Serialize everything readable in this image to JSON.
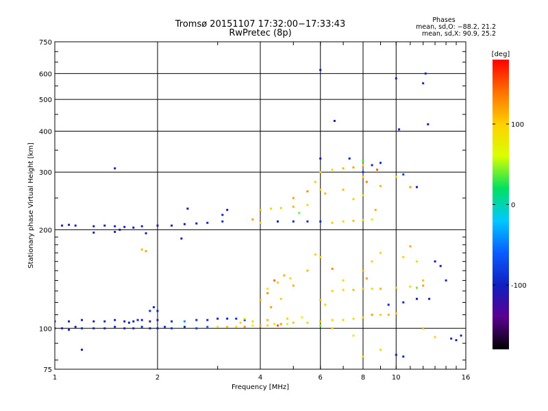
{
  "chart_data": {
    "type": "scatter",
    "title": "Tromsø 20151107 17:32:00−17:33:43",
    "subtitle": "RwPretec (8p)",
    "xlabel": "Frequency [MHz]",
    "ylabel": "Stationary phase Virtual Height [km]",
    "xscale": "log",
    "yscale": "log",
    "xlim": [
      1,
      16
    ],
    "ylim": [
      75,
      750
    ],
    "x_ticks": [
      1,
      2,
      4,
      6,
      8,
      10,
      16
    ],
    "y_ticks": [
      75,
      100,
      200,
      300,
      400,
      500,
      600,
      750
    ],
    "grid": true,
    "phase_stats": {
      "heading": "Phases",
      "line_o": "mean, sd,O: −88.2, 21.2",
      "line_x": "mean, sd,X:  90.9, 25.2"
    },
    "colorbar": {
      "label": "[deg]",
      "ticks": [
        100,
        0,
        -100
      ],
      "range": [
        -180,
        180
      ],
      "colors": [
        "#000000",
        "#5a0090",
        "#1020c0",
        "#0a5cff",
        "#00c8ff",
        "#00e060",
        "#d8ff00",
        "#ffd000",
        "#ff7000",
        "#ff0000"
      ]
    },
    "series": [
      {
        "mode": "O",
        "phase_mean": -88.2,
        "points": [
          [
            1.0,
            100,
            -110
          ],
          [
            1.05,
            100,
            -105
          ],
          [
            1.1,
            99,
            -100
          ],
          [
            1.15,
            101,
            -108
          ],
          [
            1.2,
            100,
            -95
          ],
          [
            1.3,
            100,
            -110
          ],
          [
            1.4,
            100,
            -102
          ],
          [
            1.5,
            101,
            -98
          ],
          [
            1.6,
            100,
            -106
          ],
          [
            1.7,
            100,
            -100
          ],
          [
            1.8,
            101,
            -92
          ],
          [
            1.9,
            100,
            -104
          ],
          [
            2.0,
            100,
            -99
          ],
          [
            2.1,
            101,
            -95
          ],
          [
            2.2,
            100,
            -90
          ],
          [
            2.4,
            101,
            -100
          ],
          [
            2.6,
            100,
            -80
          ],
          [
            2.8,
            101,
            -60
          ],
          [
            3.0,
            101,
            90
          ],
          [
            1.0,
            105,
            -110
          ],
          [
            1.1,
            105,
            -108
          ],
          [
            1.2,
            106,
            -100
          ],
          [
            1.3,
            105,
            -112
          ],
          [
            1.4,
            105,
            -103
          ],
          [
            1.5,
            106,
            -99
          ],
          [
            1.6,
            105,
            -107
          ],
          [
            1.7,
            105,
            -101
          ],
          [
            1.8,
            106,
            -96
          ],
          [
            1.9,
            105,
            -109
          ],
          [
            2.0,
            106,
            -102
          ],
          [
            2.2,
            105,
            -94
          ],
          [
            2.4,
            105,
            -40
          ],
          [
            2.6,
            106,
            -90
          ],
          [
            2.8,
            106,
            -95
          ],
          [
            3.0,
            107,
            -100
          ],
          [
            3.2,
            107,
            -98
          ],
          [
            3.4,
            107,
            -92
          ],
          [
            3.6,
            106,
            -88
          ],
          [
            1.05,
            206,
            -110
          ],
          [
            1.1,
            207,
            -106
          ],
          [
            1.15,
            206,
            -102
          ],
          [
            1.3,
            205,
            -105
          ],
          [
            1.4,
            206,
            -100
          ],
          [
            1.5,
            205,
            -108
          ],
          [
            1.6,
            204,
            -103
          ],
          [
            1.7,
            203,
            -100
          ],
          [
            1.8,
            205,
            -95
          ],
          [
            2.0,
            206,
            -110
          ],
          [
            2.2,
            206,
            -100
          ],
          [
            2.4,
            208,
            -106
          ],
          [
            2.6,
            209,
            -102
          ],
          [
            2.8,
            210,
            -98
          ],
          [
            3.1,
            212,
            -94
          ],
          [
            3.2,
            230,
            -100
          ],
          [
            3.1,
            222,
            -95
          ],
          [
            2.45,
            232,
            -110
          ],
          [
            2.35,
            188,
            -106
          ],
          [
            1.5,
            308,
            -100
          ],
          [
            1.3,
            196,
            -104
          ],
          [
            1.5,
            197,
            -98
          ],
          [
            1.55,
            200,
            -100
          ],
          [
            1.8,
            174,
            110
          ],
          [
            1.85,
            172,
            120
          ],
          [
            1.9,
            113,
            -95
          ],
          [
            2.0,
            113,
            -100
          ],
          [
            1.95,
            116,
            -92
          ],
          [
            1.75,
            106,
            -98
          ],
          [
            1.65,
            104,
            -100
          ],
          [
            1.2,
            86,
            -105
          ],
          [
            1.85,
            195,
            -97
          ],
          [
            4.5,
            212,
            -100
          ],
          [
            5.0,
            212,
            -95
          ],
          [
            5.5,
            212,
            -90
          ],
          [
            6.0,
            212,
            -92
          ],
          [
            6.0,
            330,
            -104
          ],
          [
            7.3,
            330,
            -100
          ],
          [
            8.0,
            300,
            -85
          ],
          [
            8.5,
            315,
            -100
          ],
          [
            9.0,
            320,
            -95
          ],
          [
            10.5,
            295,
            -85
          ],
          [
            11.5,
            270,
            -100
          ],
          [
            12.0,
            560,
            -95
          ],
          [
            12.2,
            600,
            -95
          ],
          [
            12.4,
            420,
            -100
          ],
          [
            6.6,
            430,
            -110
          ],
          [
            6.0,
            615,
            -100
          ],
          [
            10.0,
            580,
            -110
          ],
          [
            10.2,
            405,
            -100
          ],
          [
            9.5,
            118,
            -100
          ],
          [
            10.5,
            120,
            -95
          ],
          [
            11.5,
            123,
            -100
          ],
          [
            12.5,
            123,
            -105
          ],
          [
            13.0,
            160,
            -108
          ],
          [
            13.5,
            155,
            -100
          ],
          [
            14.0,
            140,
            -95
          ],
          [
            15.0,
            92,
            -100
          ],
          [
            15.5,
            95,
            -95
          ],
          [
            14.5,
            93,
            -90
          ],
          [
            10.0,
            83,
            -100
          ],
          [
            10.5,
            82,
            -95
          ]
        ]
      },
      {
        "mode": "X",
        "phase_mean": 90.9,
        "points": [
          [
            3.2,
            101,
            110
          ],
          [
            3.4,
            101,
            95
          ],
          [
            3.6,
            101,
            130
          ],
          [
            3.8,
            102,
            80
          ],
          [
            4.0,
            102,
            115
          ],
          [
            4.2,
            102,
            100
          ],
          [
            4.4,
            103,
            90
          ],
          [
            4.6,
            103,
            120
          ],
          [
            4.8,
            103,
            70
          ],
          [
            5.0,
            104,
            105
          ],
          [
            5.5,
            104,
            95
          ],
          [
            6.0,
            105,
            110
          ],
          [
            6.5,
            106,
            100
          ],
          [
            7.0,
            106,
            90
          ],
          [
            7.5,
            107,
            85
          ],
          [
            8.0,
            108,
            100
          ],
          [
            8.5,
            110,
            120
          ],
          [
            9.0,
            110,
            95
          ],
          [
            9.5,
            110,
            110
          ],
          [
            10.0,
            111,
            100
          ],
          [
            3.5,
            104,
            100
          ],
          [
            3.8,
            105,
            90
          ],
          [
            4.2,
            106,
            110
          ],
          [
            4.8,
            107,
            95
          ],
          [
            5.3,
            108,
            60
          ],
          [
            4.0,
            122,
            110
          ],
          [
            4.2,
            128,
            130
          ],
          [
            4.5,
            138,
            100
          ],
          [
            4.7,
            145,
            115
          ],
          [
            4.9,
            142,
            90
          ],
          [
            4.2,
            132,
            80
          ],
          [
            4.4,
            140,
            140
          ],
          [
            4.6,
            123,
            100
          ],
          [
            4.3,
            116,
            120
          ],
          [
            4.0,
            230,
            110
          ],
          [
            4.3,
            232,
            100
          ],
          [
            4.6,
            233,
            95
          ],
          [
            5.0,
            235,
            115
          ],
          [
            5.5,
            238,
            90
          ],
          [
            5.0,
            250,
            120
          ],
          [
            5.5,
            262,
            130
          ],
          [
            6.0,
            265,
            100
          ],
          [
            6.2,
            258,
            110
          ],
          [
            5.8,
            280,
            95
          ],
          [
            6.0,
            300,
            100
          ],
          [
            6.5,
            305,
            90
          ],
          [
            7.0,
            308,
            110
          ],
          [
            7.5,
            310,
            120
          ],
          [
            8.0,
            315,
            100
          ],
          [
            6.5,
            210,
            100
          ],
          [
            7.0,
            212,
            90
          ],
          [
            7.5,
            213,
            110
          ],
          [
            8.0,
            214,
            95
          ],
          [
            8.5,
            215,
            80
          ],
          [
            7.0,
            265,
            110
          ],
          [
            7.5,
            248,
            100
          ],
          [
            8.2,
            280,
            130
          ],
          [
            8.0,
            255,
            95
          ],
          [
            8.7,
            230,
            115
          ],
          [
            8.0,
            290,
            100
          ],
          [
            9.0,
            272,
            110
          ],
          [
            10.0,
            290,
            95
          ],
          [
            11.0,
            270,
            120
          ],
          [
            6.5,
            130,
            100
          ],
          [
            7.0,
            131,
            90
          ],
          [
            7.5,
            131,
            110
          ],
          [
            8.0,
            132,
            105
          ],
          [
            8.5,
            132,
            95
          ],
          [
            9.0,
            132,
            110
          ],
          [
            10.0,
            133,
            100
          ],
          [
            11.0,
            134,
            90
          ],
          [
            12.0,
            135,
            120
          ],
          [
            8.0,
            150,
            110
          ],
          [
            8.5,
            160,
            100
          ],
          [
            9.0,
            170,
            90
          ],
          [
            8.2,
            142,
            120
          ],
          [
            10.5,
            165,
            100
          ],
          [
            11.0,
            178,
            115
          ],
          [
            11.5,
            160,
            90
          ],
          [
            12.0,
            140,
            105
          ],
          [
            5.5,
            150,
            110
          ],
          [
            5.8,
            168,
            100
          ],
          [
            6.0,
            165,
            95
          ],
          [
            6.5,
            152,
            130
          ],
          [
            7.0,
            140,
            90
          ],
          [
            6.0,
            122,
            110
          ],
          [
            6.2,
            118,
            100
          ],
          [
            5.0,
            135,
            115
          ],
          [
            7.5,
            95,
            80
          ],
          [
            8.0,
            82,
            100
          ],
          [
            9.0,
            86,
            95
          ],
          [
            12.0,
            100,
            110
          ],
          [
            13.0,
            94,
            100
          ],
          [
            6.0,
            102,
            40
          ],
          [
            6.5,
            100,
            90
          ],
          [
            5.2,
            225,
            40
          ],
          [
            8.0,
            325,
            30
          ],
          [
            11.5,
            133,
            40
          ],
          [
            4.0,
            210,
            100
          ],
          [
            3.8,
            215,
            120
          ],
          [
            3.6,
            107,
            60
          ],
          [
            4.5,
            102,
            150
          ],
          [
            8.8,
            305,
            150
          ]
        ]
      }
    ]
  }
}
